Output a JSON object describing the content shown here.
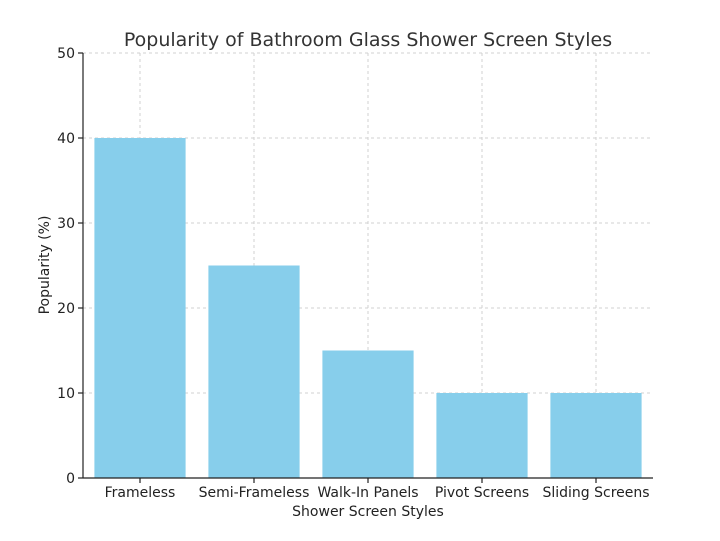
{
  "chart_data": {
    "type": "bar",
    "title": "Popularity of Bathroom Glass Shower Screen Styles",
    "xlabel": "Shower Screen Styles",
    "ylabel": "Popularity (%)",
    "categories": [
      "Frameless",
      "Semi-Frameless",
      "Walk-In Panels",
      "Pivot Screens",
      "Sliding Screens"
    ],
    "values": [
      40,
      25,
      15,
      10,
      10
    ],
    "ylim": [
      0,
      50
    ],
    "yticks": [
      0,
      10,
      20,
      30,
      40,
      50
    ],
    "bar_color": "#87ceeb",
    "grid": true
  }
}
